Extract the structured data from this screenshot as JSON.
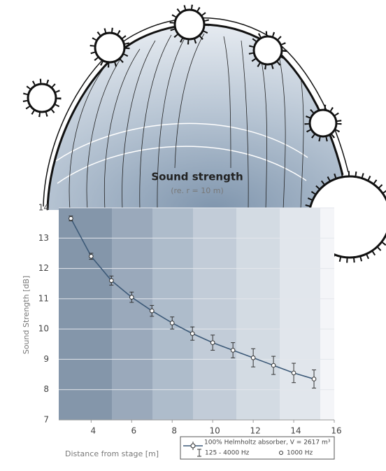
{
  "chart_data": {
    "type": "line",
    "title": "Sound strength",
    "subtitle": "(re. r = 10 m)",
    "xlabel": "Distance from stage  [m]",
    "ylabel": "Sound Strength  [dB]",
    "x": [
      3,
      4,
      5,
      6,
      7,
      8,
      9,
      10,
      11,
      12,
      13,
      14,
      15
    ],
    "series": [
      {
        "name": "100% Helmholtz absorber, V = 2617 m³",
        "color": "#3d5a78",
        "values": [
          13.65,
          12.4,
          11.6,
          11.05,
          10.6,
          10.2,
          9.85,
          9.55,
          9.3,
          9.05,
          8.8,
          8.55,
          8.35
        ],
        "yerr": [
          0.08,
          0.1,
          0.15,
          0.17,
          0.18,
          0.2,
          0.22,
          0.25,
          0.25,
          0.3,
          0.3,
          0.32,
          0.3
        ]
      }
    ],
    "legend_notes": [
      "125 - 4000 Hz",
      "1000 Hz"
    ],
    "xlim": [
      2.4,
      16
    ],
    "xticks": [
      4,
      6,
      8,
      10,
      12,
      14,
      16
    ],
    "ylim": [
      7,
      14
    ],
    "yticks": [
      7,
      8,
      9,
      10,
      11,
      12,
      13,
      14
    ],
    "grid": true
  }
}
